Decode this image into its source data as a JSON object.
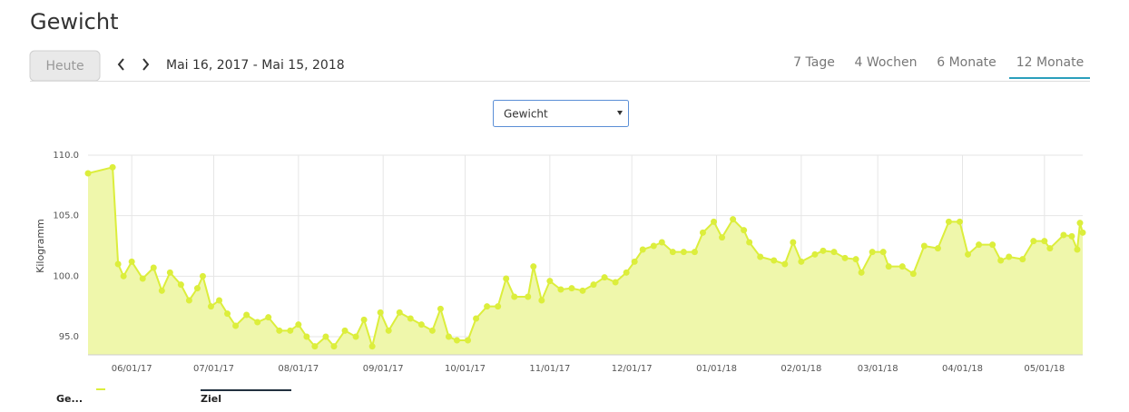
{
  "header": {
    "title": "Gewicht",
    "today_button": "Heute",
    "date_range": "Mai 16, 2017 - Mai 15, 2018",
    "tabs": [
      "7 Tage",
      "4 Wochen",
      "6 Monate",
      "12 Monate"
    ],
    "active_tab": 3
  },
  "selector": {
    "value": "Gewicht"
  },
  "chart_data": {
    "type": "area",
    "y_label": "Kilogramm",
    "x": [
      "05/16/17",
      "05/25/17",
      "05/27/17",
      "05/29/17",
      "06/01/17",
      "06/05/17",
      "06/09/17",
      "06/12/17",
      "06/15/17",
      "06/19/17",
      "06/22/17",
      "06/25/17",
      "06/27/17",
      "06/30/17",
      "07/03/17",
      "07/06/17",
      "07/09/17",
      "07/13/17",
      "07/17/17",
      "07/21/17",
      "07/25/17",
      "07/29/17",
      "08/01/17",
      "08/04/17",
      "08/07/17",
      "08/11/17",
      "08/14/17",
      "08/18/17",
      "08/22/17",
      "08/25/17",
      "08/28/17",
      "08/31/17",
      "09/03/17",
      "09/07/17",
      "09/11/17",
      "09/15/17",
      "09/19/17",
      "09/22/17",
      "09/25/17",
      "09/28/17",
      "10/02/17",
      "10/05/17",
      "10/09/17",
      "10/13/17",
      "10/16/17",
      "10/19/17",
      "10/24/17",
      "10/26/17",
      "10/29/17",
      "11/01/17",
      "11/05/17",
      "11/09/17",
      "11/13/17",
      "11/17/17",
      "11/21/17",
      "11/25/17",
      "11/29/17",
      "12/02/17",
      "12/05/17",
      "12/09/17",
      "12/12/17",
      "12/16/17",
      "12/20/17",
      "12/24/17",
      "12/27/17",
      "12/31/17",
      "01/03/18",
      "01/07/18",
      "01/11/18",
      "01/13/18",
      "01/17/18",
      "01/22/18",
      "01/26/18",
      "01/29/18",
      "02/01/18",
      "02/06/18",
      "02/09/18",
      "02/13/18",
      "02/17/18",
      "02/21/18",
      "02/23/18",
      "02/27/18",
      "03/03/18",
      "03/05/18",
      "03/10/18",
      "03/14/18",
      "03/18/18",
      "03/23/18",
      "03/27/18",
      "03/31/18",
      "04/03/18",
      "04/07/18",
      "04/12/18",
      "04/15/18",
      "04/18/18",
      "04/23/18",
      "04/27/18",
      "05/01/18",
      "05/03/18",
      "05/08/18",
      "05/11/18",
      "05/13/18",
      "05/14/18",
      "05/15/18"
    ],
    "series": [
      {
        "name": "Ge...",
        "color": "#dcee3c",
        "fill": "#eff7ab",
        "values": [
          108.5,
          109.0,
          101.0,
          100.0,
          101.2,
          99.8,
          100.7,
          98.8,
          100.3,
          99.3,
          98.0,
          99.0,
          100.0,
          97.5,
          98.0,
          96.9,
          95.9,
          96.8,
          96.2,
          96.6,
          95.5,
          95.5,
          96.0,
          95.0,
          94.2,
          95.0,
          94.2,
          95.5,
          95.0,
          96.4,
          94.2,
          97.0,
          95.5,
          97.0,
          96.5,
          96.0,
          95.5,
          97.3,
          95.0,
          94.7,
          94.7,
          96.5,
          97.5,
          97.5,
          99.8,
          98.3,
          98.3,
          100.8,
          98.0,
          99.6,
          98.9,
          99.0,
          98.8,
          99.3,
          99.9,
          99.5,
          100.3,
          101.2,
          102.2,
          102.5,
          102.8,
          102.0,
          102.0,
          102.0,
          103.6,
          104.5,
          103.2,
          104.7,
          103.8,
          102.8,
          101.6,
          101.3,
          101.0,
          102.8,
          101.2,
          101.8,
          102.1,
          102.0,
          101.5,
          101.4,
          100.3,
          102.0,
          102.0,
          100.8,
          100.8,
          100.2,
          102.5,
          102.3,
          104.5,
          104.5,
          101.8,
          102.6,
          102.6,
          101.3,
          101.6,
          101.4,
          102.9,
          102.9,
          102.3,
          103.4,
          103.3,
          102.2,
          104.4,
          103.6
        ]
      }
    ],
    "target": {
      "name": "Ziel",
      "color": "#22303f"
    },
    "xlim": [
      "05/16/17",
      "05/15/18"
    ],
    "xticks": [
      "06/01/17",
      "07/01/17",
      "08/01/17",
      "09/01/17",
      "10/01/17",
      "11/01/17",
      "12/01/17",
      "01/01/18",
      "02/01/18",
      "03/01/18",
      "04/01/18",
      "05/01/18"
    ],
    "ylim": [
      93.5,
      110
    ],
    "yticks": [
      {
        "value": 95,
        "label": "95.0"
      },
      {
        "value": 100,
        "label": "100.0"
      },
      {
        "value": 105,
        "label": "105.0"
      },
      {
        "value": 110,
        "label": "110.0"
      }
    ],
    "grid": true
  }
}
